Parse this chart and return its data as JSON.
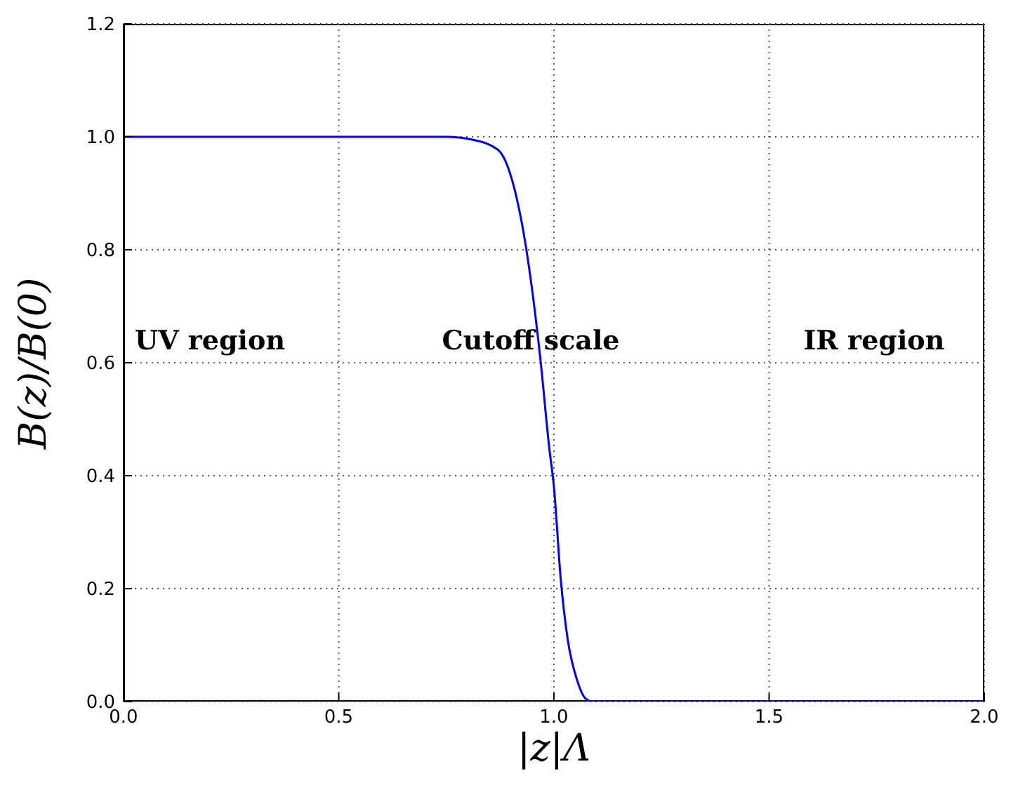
{
  "chart_data": {
    "type": "line",
    "xlabel": "|z|Λ",
    "ylabel": "B(z)/B(0)",
    "x": [
      0,
      0.2,
      0.4,
      0.6,
      0.7,
      0.75,
      0.81,
      0.87,
      0.904,
      0.936,
      0.968,
      0.989,
      1.0,
      1.016,
      1.032,
      1.053,
      1.074,
      1.09,
      1.2,
      1.5,
      2.0
    ],
    "series": [
      {
        "color": "#0000ff",
        "values": [
          1,
          1,
          1,
          1,
          1,
          1,
          0.995,
          0.977,
          0.92,
          0.8,
          0.61,
          0.45,
          0.38,
          0.215,
          0.11,
          0.04,
          0.005,
          0,
          0,
          0,
          0
        ]
      }
    ],
    "xlim": [
      0,
      2
    ],
    "xticks": [
      {
        "value": 0,
        "label": "0.0"
      },
      0.5,
      {
        "value": 1,
        "label": "1.0"
      },
      1.5,
      {
        "value": 2,
        "label": "2.0"
      }
    ],
    "ylim": [
      0,
      1.2
    ],
    "yticks": [
      {
        "value": 0,
        "label": "0.0"
      },
      0.2,
      0.4,
      0.6,
      0.8,
      {
        "value": 1,
        "label": "1.0"
      },
      1.2
    ],
    "grid": true,
    "line_style": "solid",
    "marker": "none",
    "annotations": [
      "UV region",
      "Cutoff scale",
      "IR region"
    ]
  }
}
